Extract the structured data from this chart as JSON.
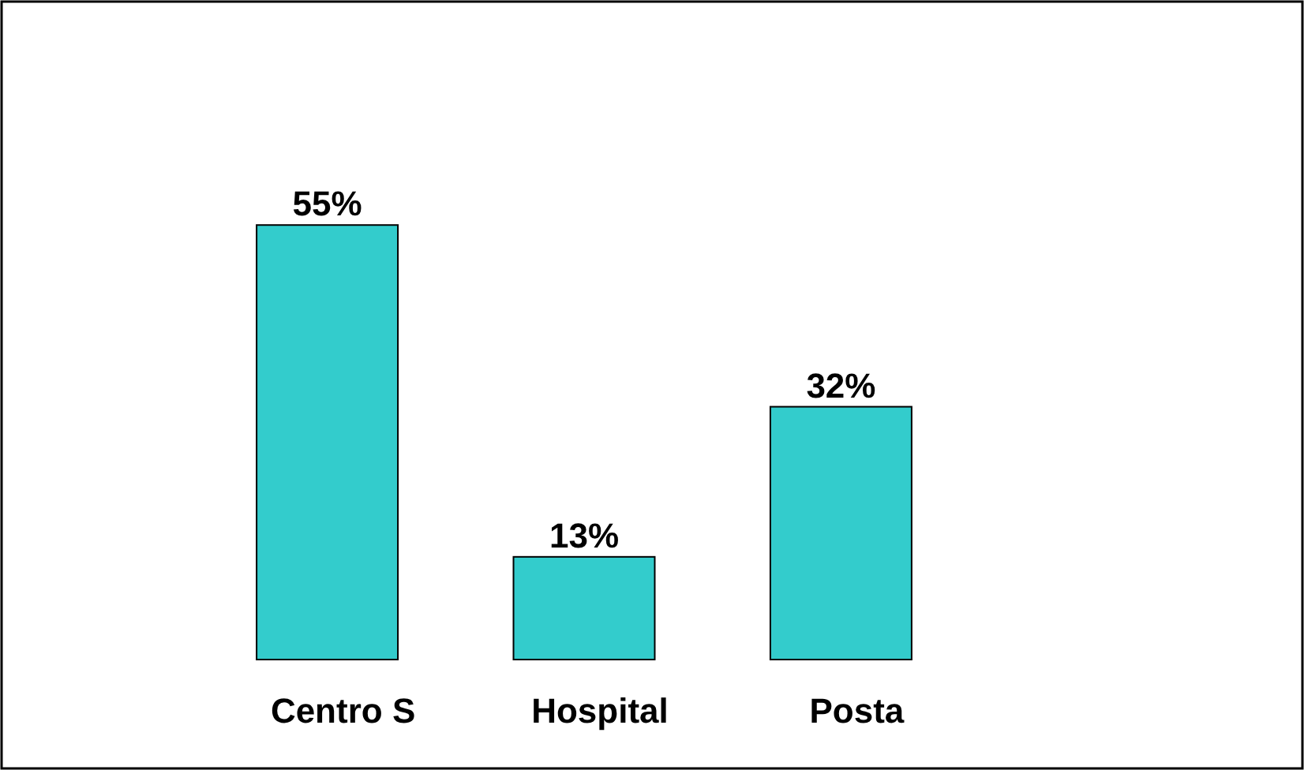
{
  "chart_data": {
    "type": "bar",
    "categories": [
      "Centro S",
      "Hospital",
      "Posta"
    ],
    "values": [
      55,
      13,
      32
    ],
    "value_labels": [
      "55%",
      "13%",
      "32%"
    ],
    "color": "#33cccc"
  }
}
